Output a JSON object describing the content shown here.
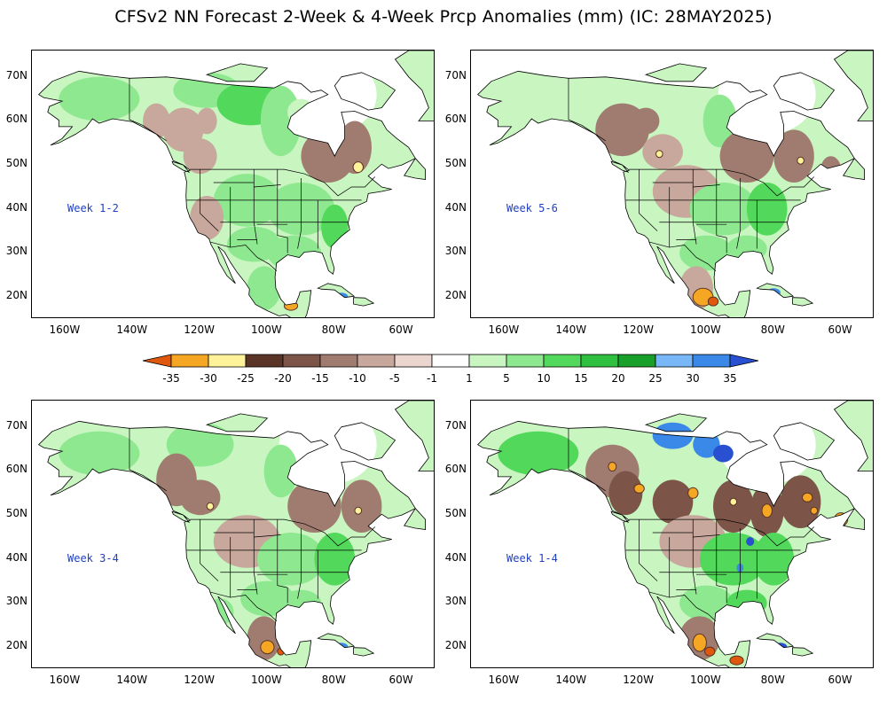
{
  "title": "CFSv2 NN Forecast 2-Week & 4-Week Prcp Anomalies (mm) (IC: 28MAY2025)",
  "lat_ticks": [
    "70N",
    "60N",
    "50N",
    "40N",
    "30N",
    "20N"
  ],
  "lon_ticks": [
    "160W",
    "140W",
    "120W",
    "100W",
    "80W",
    "60W"
  ],
  "panels": [
    {
      "label": "Week 1-2"
    },
    {
      "label": "Week 5-6"
    },
    {
      "label": "Week 3-4"
    },
    {
      "label": "Week 1-4"
    }
  ],
  "colorbar": {
    "ticks": [
      "-35",
      "-30",
      "-25",
      "-20",
      "-15",
      "-10",
      "-5",
      "-1",
      "1",
      "5",
      "10",
      "15",
      "20",
      "25",
      "30",
      "35"
    ],
    "colors": [
      "#e0580e",
      "#f5a623",
      "#fef29a",
      "#5a3426",
      "#7d5448",
      "#a07c70",
      "#c8a89c",
      "#ead6ce",
      "#ffffff",
      "#c8f5c0",
      "#8ee890",
      "#52d85a",
      "#30c040",
      "#18a02a",
      "#78b8f8",
      "#3a88e8",
      "#2850d0"
    ]
  }
}
